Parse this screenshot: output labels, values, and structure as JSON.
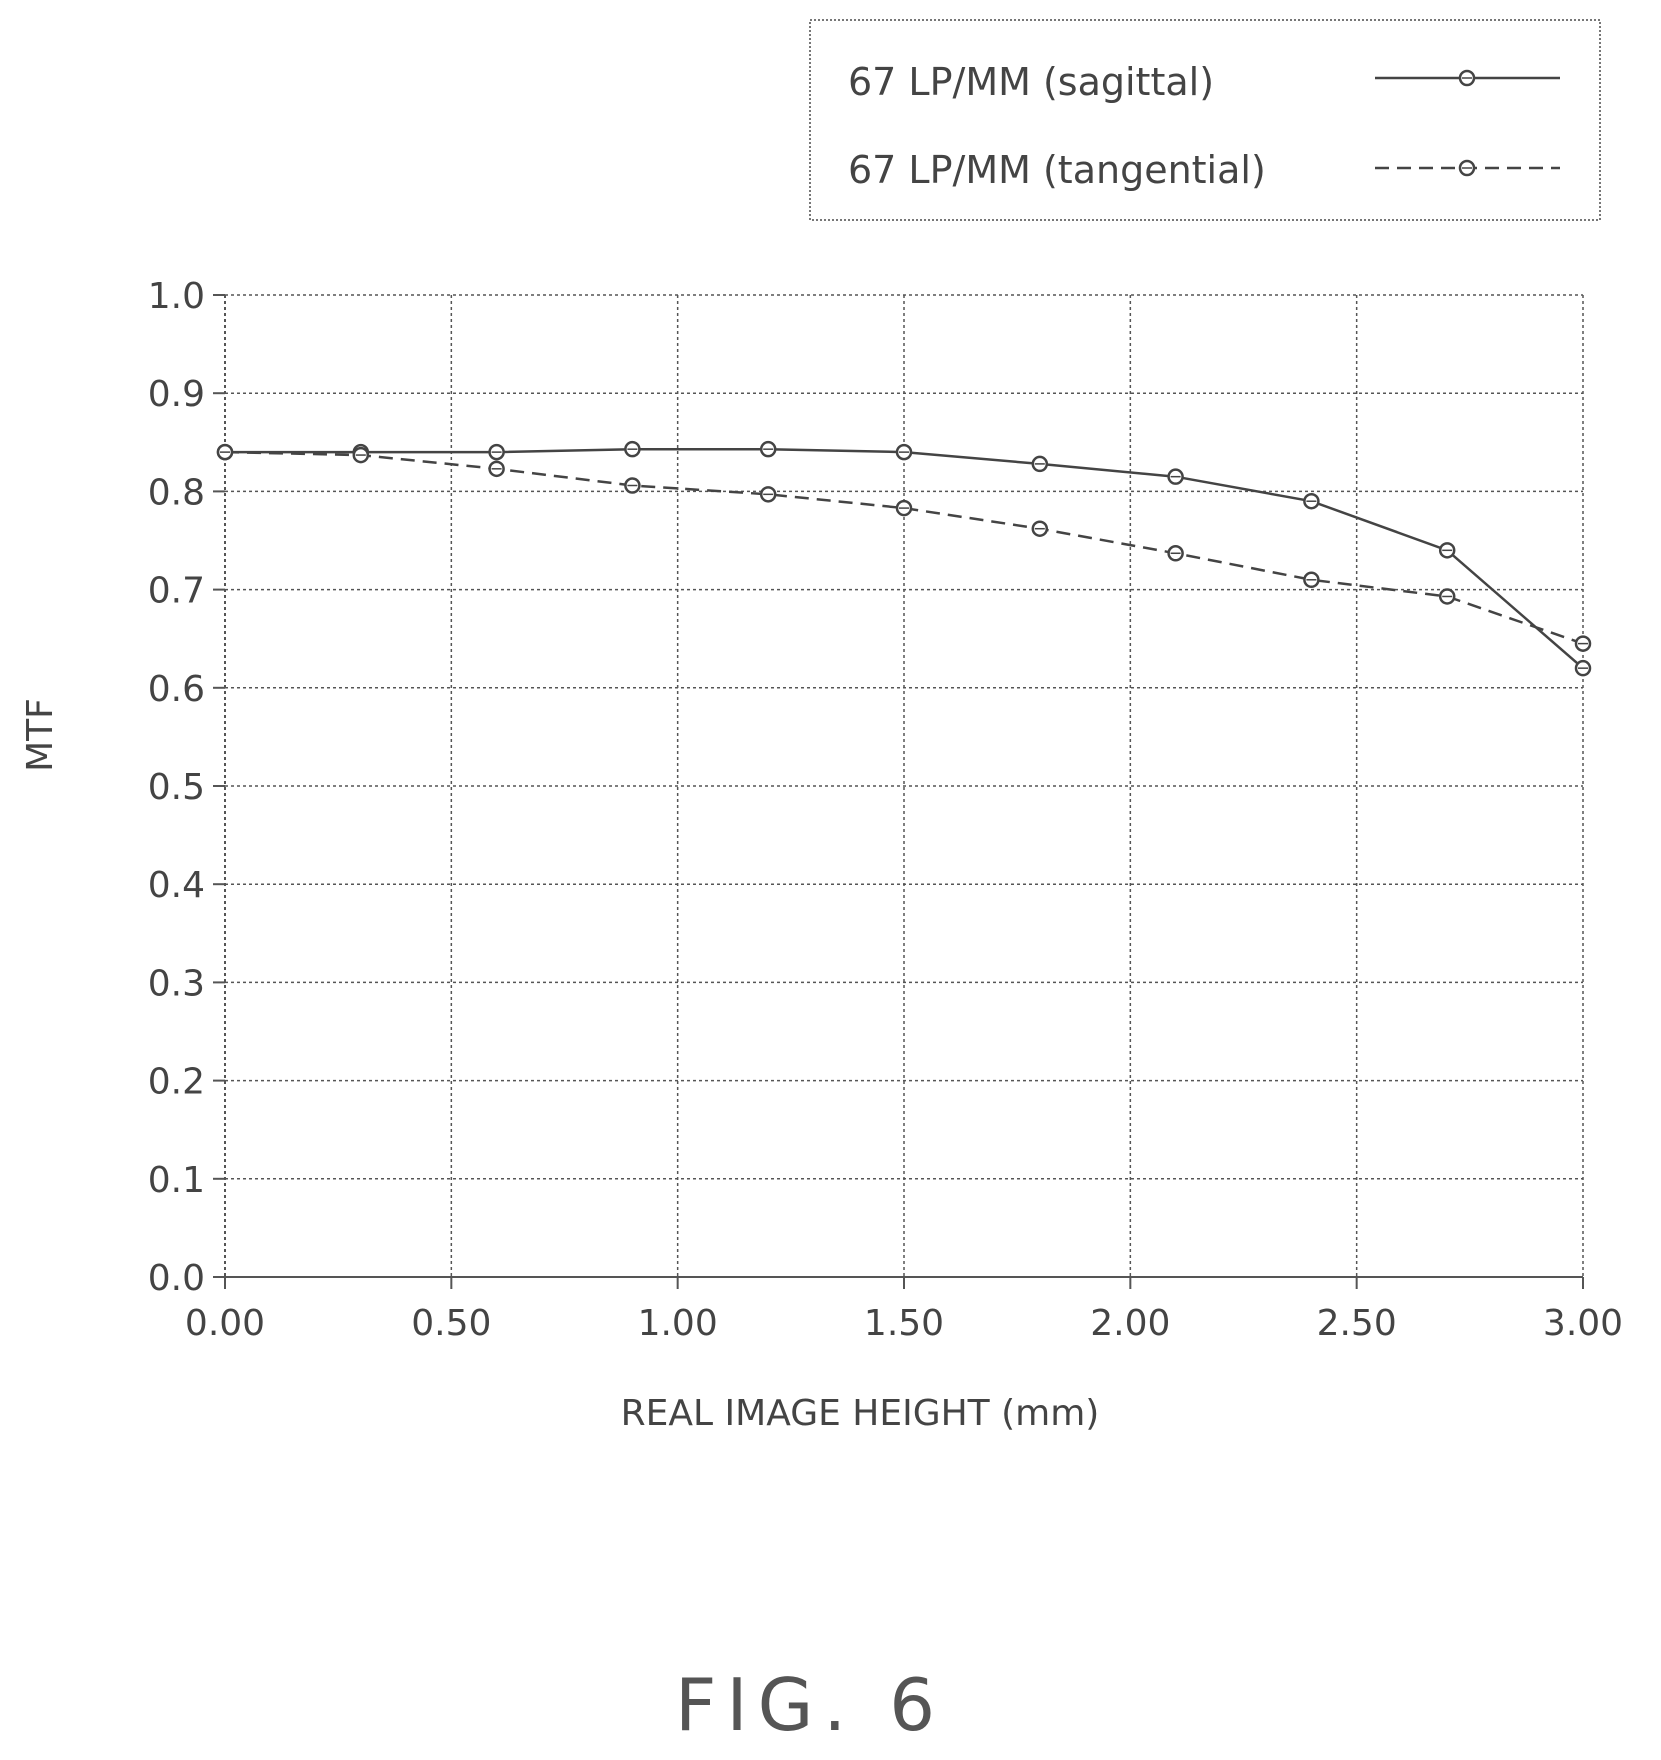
{
  "chart_data": {
    "type": "line",
    "title": "",
    "xlabel": "REAL IMAGE HEIGHT (mm)",
    "ylabel": "MTF",
    "xlim": [
      0,
      3
    ],
    "ylim": [
      0,
      1
    ],
    "x_ticks": [
      "0.00",
      "0.50",
      "1.00",
      "1.50",
      "2.00",
      "2.50",
      "3.00"
    ],
    "y_ticks": [
      "0.0",
      "0.1",
      "0.2",
      "0.3",
      "0.4",
      "0.5",
      "0.6",
      "0.7",
      "0.8",
      "0.9",
      "1.0"
    ],
    "grid": true,
    "legend_position": "top-right",
    "series": [
      {
        "name": "67 LP/MM (sagittal)",
        "style": "solid",
        "x": [
          0.0,
          0.3,
          0.6,
          0.9,
          1.2,
          1.5,
          1.8,
          2.1,
          2.4,
          2.7,
          3.0
        ],
        "y": [
          0.84,
          0.84,
          0.84,
          0.843,
          0.843,
          0.84,
          0.828,
          0.815,
          0.79,
          0.74,
          0.62
        ]
      },
      {
        "name": "67 LP/MM (tangential)",
        "style": "dashed",
        "x": [
          0.0,
          0.3,
          0.6,
          0.9,
          1.2,
          1.5,
          1.8,
          2.1,
          2.4,
          2.7,
          3.0
        ],
        "y": [
          0.84,
          0.837,
          0.823,
          0.806,
          0.797,
          0.783,
          0.762,
          0.737,
          0.71,
          0.693,
          0.645
        ]
      }
    ]
  },
  "caption": "FIG. 6"
}
